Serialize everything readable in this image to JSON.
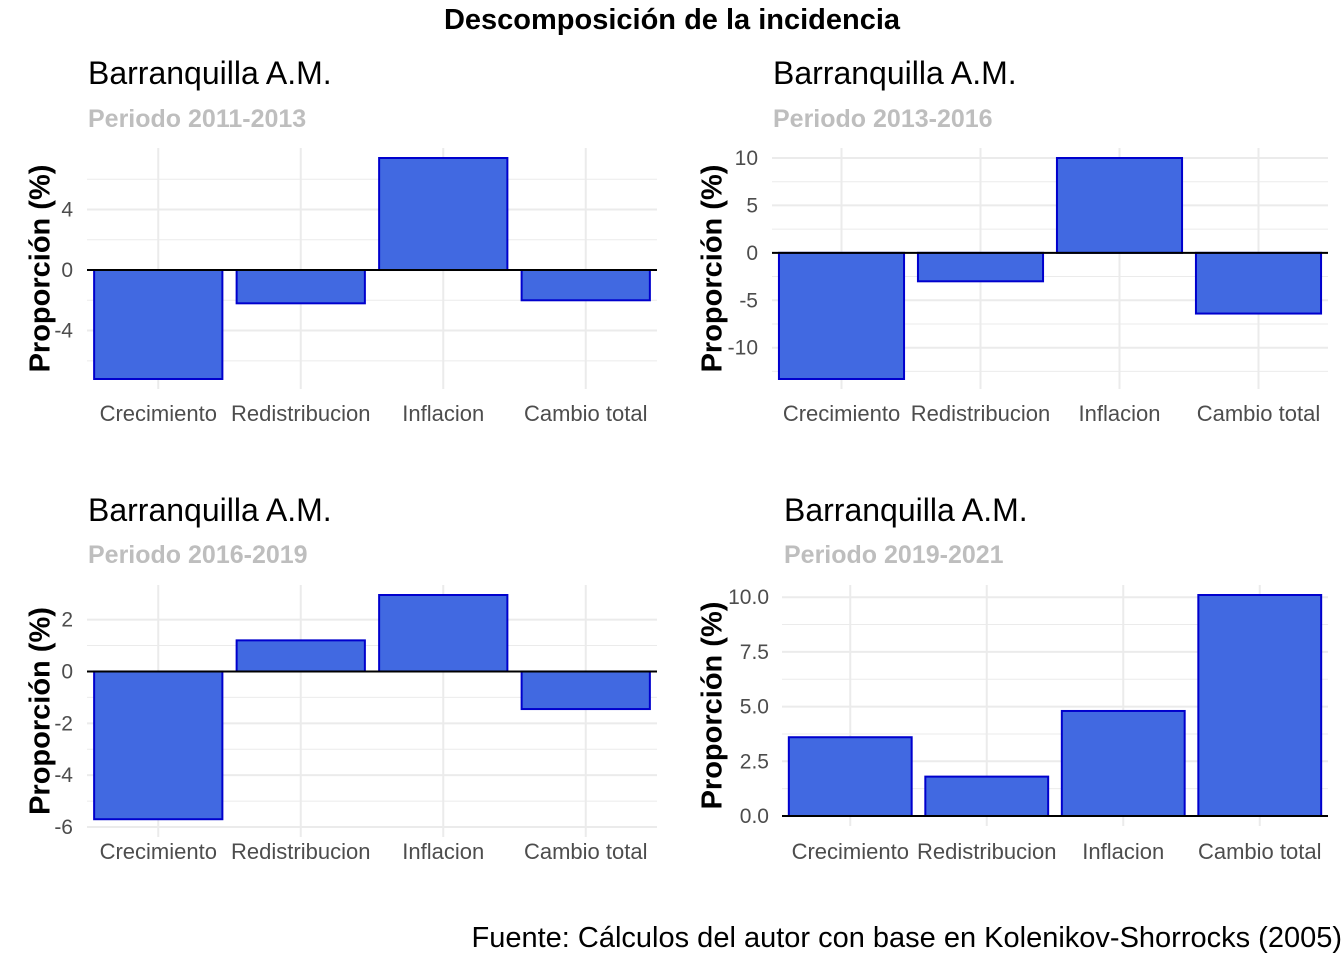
{
  "main_title": "Descomposición de la incidencia",
  "caption": "Fuente: Cálculos del autor con base en Kolenikov-Shorrocks (2005)",
  "colors": {
    "bar_fill": "#4169E1",
    "bar_stroke": "#0000CD",
    "grid": "#EBEBEB",
    "axis_text": "#4D4D4D",
    "subtitle": "#BEBEBE"
  },
  "chart_data": [
    {
      "type": "bar",
      "title": "Barranquilla A.M.",
      "subtitle": "Periodo 2011-2013",
      "ylabel": "Proporción (%)",
      "categories": [
        "Crecimiento",
        "Redistribucion",
        "Inflacion",
        "Cambio total"
      ],
      "values": [
        -7.2,
        -2.2,
        7.4,
        -2.0
      ],
      "ylim": [
        -7.2,
        7.4
      ],
      "yticks": [
        -4,
        0,
        4
      ],
      "ytick_labels": [
        "-4",
        "0",
        "4"
      ],
      "grid": true
    },
    {
      "type": "bar",
      "title": "Barranquilla A.M.",
      "subtitle": "Periodo 2013-2016",
      "ylabel": "Proporción (%)",
      "categories": [
        "Crecimiento",
        "Redistribucion",
        "Inflacion",
        "Cambio total"
      ],
      "values": [
        -13.3,
        -3.0,
        10.0,
        -6.4
      ],
      "ylim": [
        -13.3,
        10.0
      ],
      "yticks": [
        -10,
        -5,
        0,
        5,
        10
      ],
      "ytick_labels": [
        "-10",
        "-5",
        "0",
        "5",
        "10"
      ],
      "grid": true
    },
    {
      "type": "bar",
      "title": "Barranquilla A.M.",
      "subtitle": "Periodo 2016-2019",
      "ylabel": "Proporción (%)",
      "categories": [
        "Crecimiento",
        "Redistribucion",
        "Inflacion",
        "Cambio total"
      ],
      "values": [
        -5.7,
        1.2,
        2.95,
        -1.45
      ],
      "ylim": [
        -6.0,
        2.95
      ],
      "yticks": [
        -6,
        -4,
        -2,
        0,
        2
      ],
      "ytick_labels": [
        "-6",
        "-4",
        "-2",
        "0",
        "2"
      ],
      "grid": true
    },
    {
      "type": "bar",
      "title": "Barranquilla A.M.",
      "subtitle": "Periodo 2019-2021",
      "ylabel": "Proporción (%)",
      "categories": [
        "Crecimiento",
        "Redistribucion",
        "Inflacion",
        "Cambio total"
      ],
      "values": [
        3.6,
        1.8,
        4.8,
        10.1
      ],
      "ylim": [
        0,
        10.1
      ],
      "yticks": [
        0,
        2.5,
        5,
        7.5,
        10
      ],
      "ytick_labels": [
        "0.0",
        "2.5",
        "5.0",
        "7.5",
        "10.0"
      ],
      "grid": true
    }
  ]
}
